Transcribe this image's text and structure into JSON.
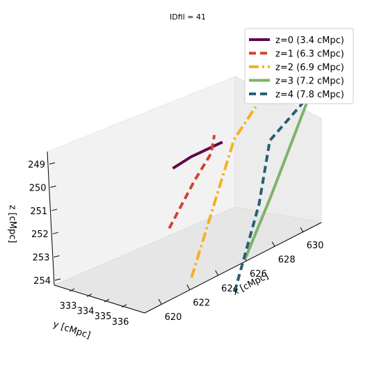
{
  "chart_data": {
    "type": "line",
    "title": "IDfil = 41",
    "xlabel": "x [cMpc]",
    "ylabel": "y [cMpc]",
    "zlabel": "z [cMpc]",
    "x_ticks": [
      "620",
      "622",
      "624",
      "626",
      "628",
      "630"
    ],
    "y_ticks": [
      "333",
      "334",
      "335",
      "336"
    ],
    "z_ticks": [
      "249",
      "250",
      "251",
      "252",
      "253",
      "254"
    ],
    "legend_placement": "top-right",
    "series": [
      {
        "name": "z=0 (3.4 cMpc)",
        "color": "#5b0a4b",
        "dash": "solid",
        "points": [
          [
            620.6,
            333.2,
            249.2
          ],
          [
            621.6,
            333.4,
            249.0
          ],
          [
            623.5,
            333.5,
            249.0
          ]
        ]
      },
      {
        "name": "z=1 (6.3 cMpc)",
        "color": "#cf4434",
        "dash": "dashed",
        "points": [
          [
            619.5,
            333.8,
            251.3
          ],
          [
            621.6,
            333.5,
            250.0
          ],
          [
            623.2,
            333.0,
            249.5
          ],
          [
            623.5,
            333.0,
            248.8
          ]
        ]
      },
      {
        "name": "z=2 (6.9 cMpc)",
        "color": "#f5b11e",
        "dash": "dashdot",
        "points": [
          [
            619.5,
            335.0,
            253.2
          ],
          [
            624.5,
            333.2,
            249.3
          ],
          [
            626.0,
            333.2,
            248.4
          ]
        ]
      },
      {
        "name": "z=3 (7.2 cMpc)",
        "color": "#80b16c",
        "dash": "solid",
        "points": [
          [
            622.0,
            336.0,
            253.0
          ],
          [
            624.8,
            335.0,
            251.5
          ],
          [
            628.6,
            333.8,
            249.0
          ],
          [
            628.4,
            333.6,
            248.5
          ]
        ]
      },
      {
        "name": "z=4 (7.8 cMpc)",
        "color": "#246077",
        "dash": "dashed",
        "points": [
          [
            620.7,
            336.5,
            253.9
          ],
          [
            623.4,
            335.7,
            251.2
          ],
          [
            626.5,
            333.4,
            250.0
          ],
          [
            628.1,
            333.6,
            249.2
          ],
          [
            629.2,
            333.9,
            248.5
          ],
          [
            629.7,
            333.4,
            248.8
          ]
        ]
      }
    ]
  }
}
